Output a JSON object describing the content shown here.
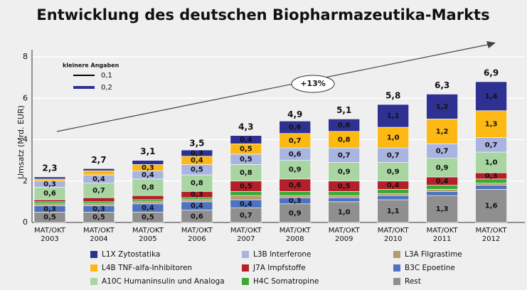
{
  "chart_data": {
    "type": "stacked_bar",
    "title": "Entwicklung des deutschen Biopharmazeutika-Markts",
    "y_label": "Umsatz (Mrd. EUR)",
    "categories": [
      [
        "MAT/OKT",
        "2003"
      ],
      [
        "MAT/OKT",
        "2004"
      ],
      [
        "MAT/OKT",
        "2005"
      ],
      [
        "MAT/OKT",
        "2006"
      ],
      [
        "MAT/OKT",
        "2007"
      ],
      [
        "MAT/OKT",
        "2008"
      ],
      [
        "MAT/OKT",
        "2009"
      ],
      [
        "MAT/OKT",
        "2010"
      ],
      [
        "MAT/OKT",
        "2011"
      ],
      [
        "MAT/OKT",
        "2012"
      ]
    ],
    "ylim": [
      0,
      8
    ],
    "yticks": [
      0,
      2,
      4,
      6,
      8
    ],
    "grid": true,
    "totals": [
      2.3,
      2.7,
      3.1,
      3.5,
      4.3,
      4.9,
      5.1,
      5.8,
      6.3,
      6.9
    ],
    "total_labels": [
      "2,3",
      "2,7",
      "3,1",
      "3,5",
      "4,3",
      "4,9",
      "5,1",
      "5,8",
      "6,3",
      "6,9"
    ],
    "annotation": "+13%",
    "small_legend": {
      "title": "kleinere Angaben",
      "items": [
        {
          "label": "0,1",
          "color": "#000000"
        },
        {
          "label": "0,2",
          "color": "#2e3191"
        }
      ]
    },
    "series": [
      {
        "name": "Rest",
        "color": "#8f8f8f",
        "values": [
          0.5,
          0.5,
          0.5,
          0.6,
          0.7,
          0.9,
          1.0,
          1.1,
          1.3,
          1.6
        ],
        "value_labels": [
          "0,5",
          "0,5",
          "0,5",
          "0,6",
          "0,7",
          "0,9",
          "1,0",
          "1,1",
          "1,3",
          "1,6"
        ]
      },
      {
        "name": "B3C Epoetine",
        "color": "#4f73c0",
        "values": [
          0.3,
          0.3,
          0.4,
          0.4,
          0.4,
          0.3,
          0.2,
          0.2,
          0.2,
          0.2
        ],
        "value_labels": [
          "0,3",
          "0,3",
          "0,4",
          "0,4",
          "0,4",
          "0,3",
          null,
          null,
          null,
          null
        ]
      },
      {
        "name": "L3A Filgrastime",
        "color": "#b59a6d",
        "values": [
          0.1,
          0.1,
          0.1,
          0.1,
          0.2,
          0.1,
          0.1,
          0.1,
          0.1,
          0.1
        ],
        "value_labels": [
          null,
          null,
          null,
          null,
          null,
          null,
          null,
          null,
          null,
          null
        ]
      },
      {
        "name": "H4C Somatropine",
        "color": "#3aaa35",
        "values": [
          0.1,
          0.1,
          0.1,
          0.1,
          0.2,
          0.2,
          0.2,
          0.2,
          0.2,
          0.2
        ],
        "value_labels": [
          null,
          null,
          null,
          null,
          null,
          null,
          null,
          null,
          null,
          null
        ]
      },
      {
        "name": "J7A Impfstoffe",
        "color": "#b3202a",
        "values": [
          0.1,
          0.2,
          0.2,
          0.3,
          0.5,
          0.6,
          0.5,
          0.4,
          0.4,
          0.3
        ],
        "value_labels": [
          null,
          null,
          null,
          "0,3",
          "0,5",
          "0,6",
          "0,5",
          "0,4",
          "0,4",
          "0,3"
        ]
      },
      {
        "name": "A10C Humaninsulin und Analoga",
        "color": "#a8d5a2",
        "values": [
          0.6,
          0.7,
          0.8,
          0.8,
          0.8,
          0.9,
          0.9,
          0.9,
          0.9,
          1.0
        ],
        "value_labels": [
          "0,6",
          "0,7",
          "0,8",
          "0,8",
          "0,8",
          "0,9",
          "0,9",
          "0,9",
          "0,9",
          "1,0"
        ]
      },
      {
        "name": "L3B Interferone",
        "color": "#a9b4e0",
        "values": [
          0.3,
          0.4,
          0.4,
          0.5,
          0.5,
          0.6,
          0.7,
          0.7,
          0.7,
          0.7
        ],
        "value_labels": [
          "0,3",
          "0,4",
          "0,4",
          "0,5",
          "0,5",
          "0,6",
          "0,7",
          "0,7",
          "0,7",
          "0,7"
        ]
      },
      {
        "name": "L4B TNF-alfa-Inhibitoren",
        "color": "#fdb913",
        "values": [
          0.1,
          0.2,
          0.3,
          0.4,
          0.5,
          0.7,
          0.8,
          1.0,
          1.2,
          1.3
        ],
        "value_labels": [
          null,
          null,
          "0,3",
          "0,4",
          "0,5",
          "0,7",
          "0,8",
          "1,0",
          "1,2",
          "1,3"
        ]
      },
      {
        "name": "L1X Zytostatika",
        "color": "#2e3191",
        "values": [
          0.1,
          0.1,
          0.2,
          0.3,
          0.4,
          0.6,
          0.6,
          1.1,
          1.2,
          1.4
        ],
        "value_labels": [
          null,
          null,
          null,
          "0,3",
          "0,4",
          "0,6",
          "0,6",
          "1,1",
          "1,2",
          "1,4"
        ]
      }
    ]
  }
}
